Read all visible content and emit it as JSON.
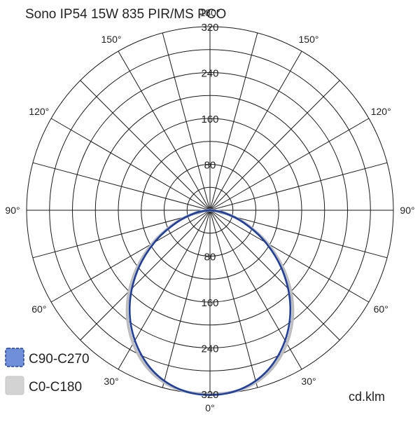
{
  "chart_data": {
    "type": "polar",
    "title": "Sono IP54 15W 835 PIR/MS PCO",
    "unit": "cd.klm",
    "r_max": 320,
    "radial_tick_values": [
      80,
      160,
      240,
      320
    ],
    "radial_tick_labels": [
      "80",
      "160",
      "240",
      "320"
    ],
    "angle_labels": [
      "0°",
      "30°",
      "60°",
      "90°",
      "120°",
      "150°",
      "180°"
    ],
    "grid": true,
    "legend_position": "bottom-left",
    "series": [
      {
        "name": "C90-C270",
        "color": "#1e3fa0",
        "legend_fill": "#6f8fd8",
        "angles_deg": [
          0,
          10,
          20,
          30,
          40,
          50,
          60,
          70,
          80,
          90
        ],
        "values": [
          322,
          316,
          296,
          262,
          218,
          166,
          112,
          62,
          24,
          0
        ]
      },
      {
        "name": "C0-C180",
        "color": "#bdbdbd",
        "legend_fill": "#d3d3d3",
        "angles_deg": [
          0,
          10,
          20,
          30,
          40,
          50,
          60,
          70,
          80,
          90
        ],
        "values": [
          320,
          317,
          300,
          268,
          225,
          172,
          116,
          64,
          25,
          0
        ]
      }
    ]
  }
}
